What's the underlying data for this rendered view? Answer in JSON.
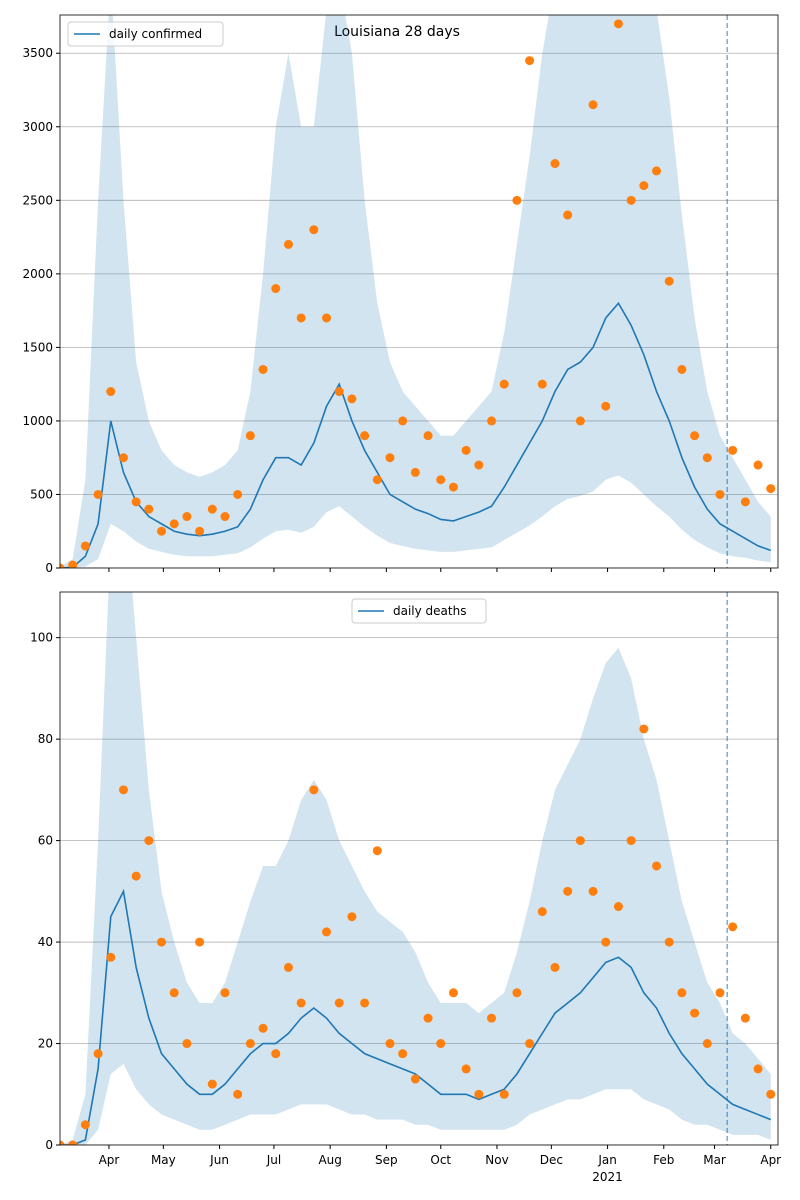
{
  "chart_data": [
    {
      "type": "line_scatter",
      "title": "Louisiana 28 days",
      "legend": "upper left",
      "x": [
        0,
        7,
        14,
        21,
        28,
        35,
        42,
        49,
        56,
        63,
        70,
        77,
        84,
        91,
        98,
        105,
        112,
        119,
        126,
        133,
        140,
        147,
        154,
        161,
        168,
        175,
        182,
        189,
        196,
        203,
        210,
        217,
        224,
        231,
        238,
        245,
        252,
        259,
        266,
        273,
        280,
        287,
        294,
        301,
        308,
        315,
        322,
        329,
        336,
        343,
        350,
        357,
        364,
        371,
        378,
        385,
        392
      ],
      "xlim": [
        0,
        396
      ],
      "xticks": [
        27,
        57,
        88,
        118,
        149,
        180,
        210,
        241,
        271,
        302,
        333,
        361,
        392
      ],
      "ylim": [
        0,
        3760
      ],
      "yticks": [
        0,
        500,
        1000,
        1500,
        2000,
        2500,
        3000,
        3500
      ],
      "grid": true,
      "vline": 368,
      "series": [
        {
          "name": "daily confirmed",
          "color": "#1f77b4",
          "values": [
            0,
            5,
            80,
            300,
            1000,
            650,
            450,
            350,
            300,
            250,
            230,
            220,
            230,
            250,
            280,
            400,
            600,
            750,
            750,
            700,
            850,
            1100,
            1250,
            1000,
            800,
            650,
            500,
            450,
            400,
            370,
            330,
            320,
            350,
            380,
            420,
            550,
            700,
            850,
            1000,
            1200,
            1350,
            1400,
            1500,
            1700,
            1800,
            1650,
            1450,
            1200,
            1000,
            750,
            550,
            400,
            300,
            250,
            200,
            150,
            120
          ],
          "band_upper": [
            10,
            60,
            600,
            2500,
            4000,
            2500,
            1400,
            1000,
            800,
            700,
            650,
            620,
            650,
            700,
            800,
            1200,
            2000,
            3000,
            3500,
            3000,
            3000,
            3800,
            4000,
            3500,
            2500,
            1800,
            1400,
            1200,
            1100,
            1000,
            900,
            900,
            1000,
            1100,
            1200,
            1600,
            2200,
            2800,
            3500,
            4000,
            4000,
            4000,
            4000,
            4000,
            4000,
            4000,
            4000,
            3800,
            3200,
            2400,
            1700,
            1200,
            900,
            750,
            600,
            450,
            350
          ],
          "band_lower": [
            0,
            0,
            10,
            60,
            300,
            250,
            180,
            130,
            110,
            90,
            80,
            80,
            80,
            90,
            100,
            140,
            200,
            250,
            260,
            240,
            280,
            380,
            420,
            350,
            280,
            220,
            170,
            150,
            130,
            120,
            110,
            110,
            120,
            130,
            140,
            190,
            240,
            290,
            350,
            420,
            470,
            490,
            520,
            600,
            630,
            580,
            500,
            420,
            350,
            260,
            190,
            140,
            100,
            80,
            70,
            50,
            40
          ],
          "observed_color": "#ff7f0e",
          "observed": [
            0,
            20,
            150,
            500,
            1200,
            750,
            450,
            400,
            250,
            300,
            350,
            250,
            400,
            350,
            500,
            900,
            1350,
            1900,
            2200,
            1700,
            2300,
            1700,
            1200,
            1150,
            900,
            600,
            750,
            1000,
            650,
            900,
            600,
            550,
            800,
            700,
            1000,
            1250,
            2500,
            3450,
            1250,
            2750,
            2400,
            1000,
            3150,
            1100,
            3700,
            2500,
            2600,
            2700,
            1950,
            1350,
            900,
            750,
            500,
            800,
            450,
            700,
            540
          ]
        }
      ]
    },
    {
      "type": "line_scatter",
      "legend": "upper center",
      "x": [
        0,
        7,
        14,
        21,
        28,
        35,
        42,
        49,
        56,
        63,
        70,
        77,
        84,
        91,
        98,
        105,
        112,
        119,
        126,
        133,
        140,
        147,
        154,
        161,
        168,
        175,
        182,
        189,
        196,
        203,
        210,
        217,
        224,
        231,
        238,
        245,
        252,
        259,
        266,
        273,
        280,
        287,
        294,
        301,
        308,
        315,
        322,
        329,
        336,
        343,
        350,
        357,
        364,
        371,
        378,
        385,
        392
      ],
      "xlim": [
        0,
        396
      ],
      "xticks": [
        {
          "value": 27,
          "label": "Apr"
        },
        {
          "value": 57,
          "label": "May"
        },
        {
          "value": 88,
          "label": "Jun"
        },
        {
          "value": 118,
          "label": "Jul"
        },
        {
          "value": 149,
          "label": "Aug"
        },
        {
          "value": 180,
          "label": "Sep"
        },
        {
          "value": 210,
          "label": "Oct"
        },
        {
          "value": 241,
          "label": "Nov"
        },
        {
          "value": 271,
          "label": "Dec"
        },
        {
          "value": 302,
          "label": "Jan"
        },
        {
          "value": 333,
          "label": "Feb"
        },
        {
          "value": 361,
          "label": "Mar"
        },
        {
          "value": 392,
          "label": "Apr"
        }
      ],
      "x_year_label": {
        "value": 302,
        "label": "2021"
      },
      "ylim": [
        0,
        109
      ],
      "yticks": [
        0,
        20,
        40,
        60,
        80,
        100
      ],
      "grid": true,
      "vline": 368,
      "series": [
        {
          "name": "daily deaths",
          "color": "#1f77b4",
          "values": [
            0,
            0,
            1,
            15,
            45,
            50,
            35,
            25,
            18,
            15,
            12,
            10,
            10,
            12,
            15,
            18,
            20,
            20,
            22,
            25,
            27,
            25,
            22,
            20,
            18,
            17,
            16,
            15,
            14,
            12,
            10,
            10,
            10,
            9,
            10,
            11,
            14,
            18,
            22,
            26,
            28,
            30,
            33,
            36,
            37,
            35,
            30,
            27,
            22,
            18,
            15,
            12,
            10,
            8,
            7,
            6,
            5
          ],
          "band_upper": [
            0,
            1,
            10,
            60,
            120,
            130,
            100,
            70,
            50,
            40,
            32,
            28,
            28,
            32,
            40,
            48,
            55,
            55,
            60,
            68,
            72,
            68,
            60,
            55,
            50,
            46,
            44,
            42,
            38,
            32,
            28,
            28,
            28,
            26,
            28,
            30,
            38,
            48,
            60,
            70,
            75,
            80,
            88,
            95,
            98,
            92,
            80,
            72,
            60,
            48,
            40,
            32,
            28,
            22,
            20,
            17,
            14
          ],
          "band_lower": [
            0,
            0,
            0,
            3,
            14,
            16,
            11,
            8,
            6,
            5,
            4,
            3,
            3,
            4,
            5,
            6,
            6,
            6,
            7,
            8,
            8,
            8,
            7,
            6,
            6,
            5,
            5,
            5,
            4,
            4,
            3,
            3,
            3,
            3,
            3,
            3,
            4,
            6,
            7,
            8,
            9,
            9,
            10,
            11,
            11,
            11,
            9,
            8,
            7,
            5,
            4,
            4,
            3,
            2,
            2,
            2,
            1
          ],
          "observed_color": "#ff7f0e",
          "observed": [
            0,
            0,
            4,
            18,
            37,
            70,
            53,
            60,
            40,
            30,
            20,
            40,
            12,
            30,
            10,
            20,
            23,
            18,
            35,
            28,
            70,
            42,
            28,
            45,
            28,
            58,
            20,
            18,
            13,
            25,
            20,
            30,
            15,
            10,
            25,
            10,
            30,
            20,
            46,
            35,
            50,
            60,
            50,
            40,
            47,
            60,
            82,
            55,
            40,
            30,
            26,
            20,
            30,
            43,
            25,
            15,
            10
          ]
        }
      ]
    }
  ]
}
